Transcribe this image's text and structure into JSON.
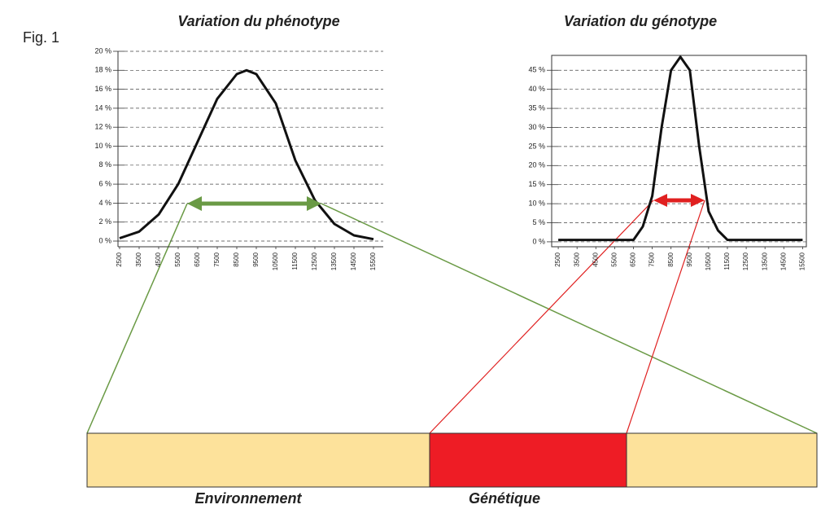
{
  "figure_label": "Fig. 1",
  "chart_data": [
    {
      "type": "line",
      "title": "Variation du phénotype",
      "color": "#111111",
      "box": false,
      "grid": true,
      "x": [
        2500,
        3500,
        4500,
        5500,
        6500,
        7500,
        8500,
        9000,
        9500,
        10500,
        11500,
        12500,
        13500,
        14500,
        15500
      ],
      "values": [
        0.3,
        1,
        2.8,
        6,
        10.5,
        15,
        17.6,
        18,
        17.6,
        14.5,
        8.5,
        4.3,
        1.8,
        0.6,
        0.2
      ],
      "xlim": [
        2000,
        16000
      ],
      "ylim": [
        -0.6,
        20
      ],
      "xticks": [
        2500,
        3500,
        4500,
        5500,
        6500,
        7500,
        8500,
        9500,
        10500,
        11500,
        12500,
        13500,
        14500,
        15500
      ],
      "yticks": [
        {
          "value": 0,
          "label": "0 %"
        },
        {
          "value": 2,
          "label": "2 %"
        },
        {
          "value": 4,
          "label": "4 %"
        },
        {
          "value": 6,
          "label": "6 %"
        },
        {
          "value": 8,
          "label": "8 %"
        },
        {
          "value": 10,
          "label": "10 %"
        },
        {
          "value": 12,
          "label": "12 %"
        },
        {
          "value": 14,
          "label": "14 %"
        },
        {
          "value": 16,
          "label": "16 %"
        },
        {
          "value": 18,
          "label": "18 %"
        },
        {
          "value": 20,
          "label": "20 %"
        }
      ]
    },
    {
      "type": "line",
      "title": "Variation du génotype",
      "color": "#111111",
      "box": true,
      "grid": true,
      "x": [
        2500,
        3500,
        4500,
        5500,
        6500,
        7000,
        7500,
        8000,
        8500,
        9000,
        9500,
        10000,
        10500,
        11000,
        11500,
        12500,
        13500,
        14500,
        15500
      ],
      "values": [
        0.5,
        0.5,
        0.5,
        0.5,
        0.5,
        4,
        12,
        30,
        45,
        48.5,
        45,
        25,
        8,
        3,
        0.5,
        0.5,
        0.5,
        0.5,
        0.5
      ],
      "xlim": [
        2150,
        15700
      ],
      "ylim": [
        -1.3,
        48.9
      ],
      "xticks": [
        2500,
        3500,
        4500,
        5500,
        6500,
        7500,
        8500,
        9500,
        10500,
        11500,
        12500,
        13500,
        14500,
        15500
      ],
      "yticks": [
        {
          "value": 0,
          "label": "0 %"
        },
        {
          "value": 5,
          "label": "5 %"
        },
        {
          "value": 10,
          "label": "10 %"
        },
        {
          "value": 15,
          "label": "15 %"
        },
        {
          "value": 20,
          "label": "20 %"
        },
        {
          "value": 25,
          "label": "25 %"
        },
        {
          "value": 30,
          "label": "30 %"
        },
        {
          "value": 35,
          "label": "35 %"
        },
        {
          "value": 40,
          "label": "40 %"
        },
        {
          "value": 45,
          "label": "45 %"
        }
      ]
    }
  ],
  "bar_labels": [
    "Environnement",
    "Génétique"
  ]
}
